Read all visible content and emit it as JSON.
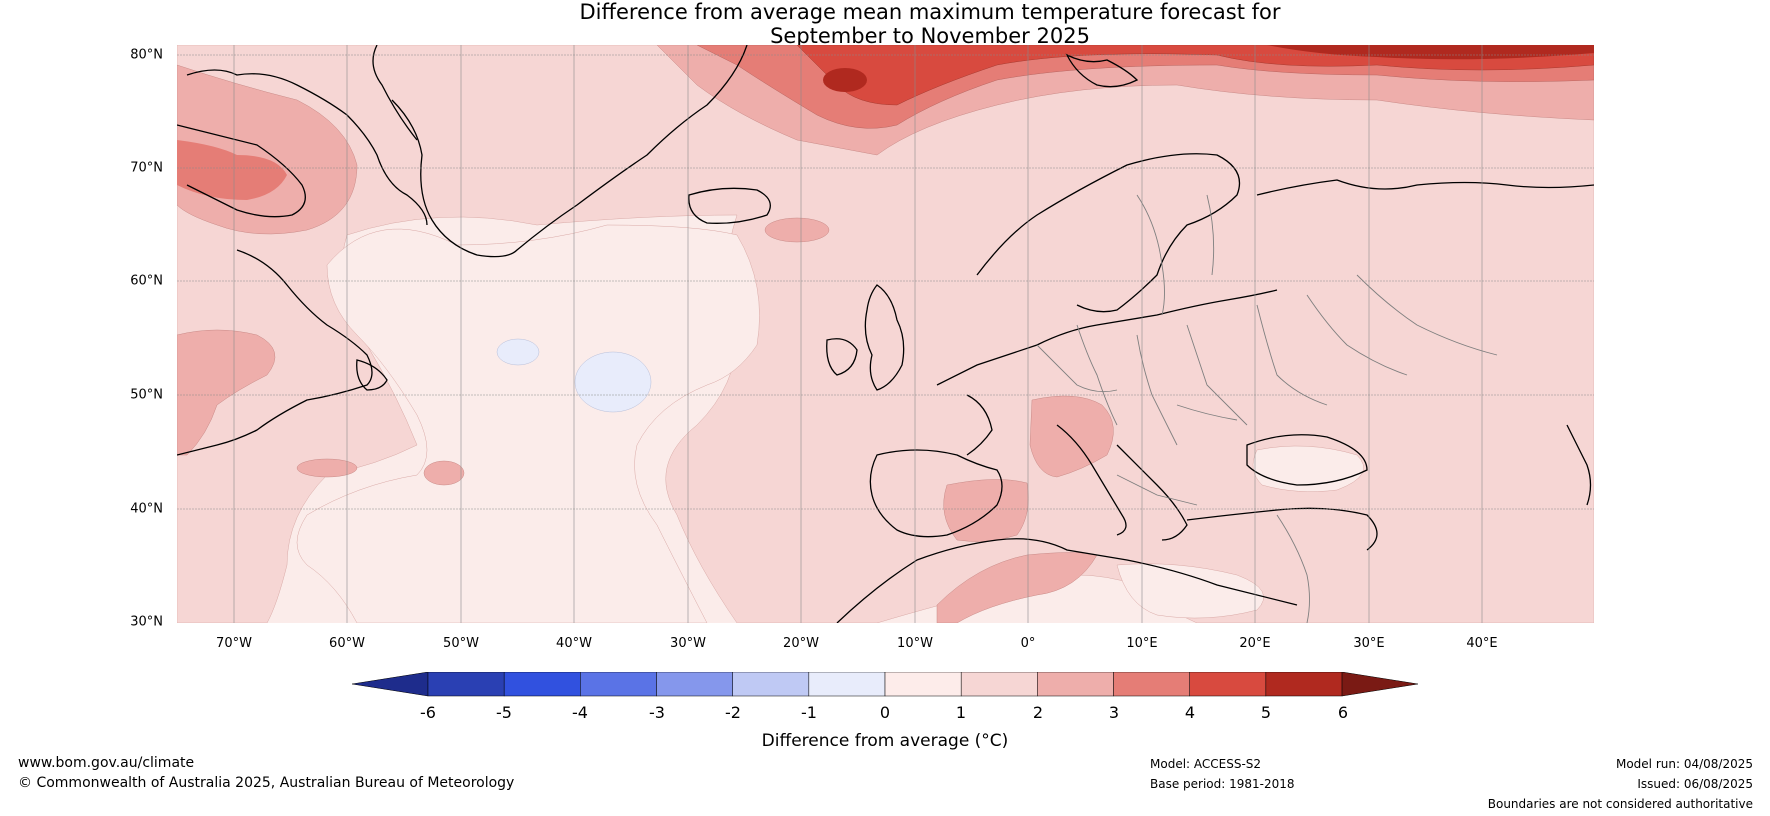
{
  "title": {
    "line1": "Difference from average mean maximum temperature forecast for",
    "line2": "September to November 2025"
  },
  "map": {
    "latitude_labels": [
      "80°N",
      "70°N",
      "60°N",
      "50°N",
      "40°N",
      "30°N"
    ],
    "longitude_labels": [
      "70°W",
      "60°W",
      "50°W",
      "40°W",
      "30°W",
      "20°W",
      "10°W",
      "0°",
      "10°E",
      "20°E",
      "30°E",
      "40°E"
    ],
    "colors": {
      "ocean_background": "#fbecea",
      "land_background": "#f6d6d4"
    }
  },
  "colorbar": {
    "ticks": [
      "-6",
      "-5",
      "-4",
      "-3",
      "-2",
      "-1",
      "0",
      "1",
      "2",
      "3",
      "4",
      "5",
      "6"
    ],
    "colors": [
      "#1e2c8c",
      "#2a40b3",
      "#3151df",
      "#5a73e6",
      "#8597ec",
      "#bfc9f4",
      "#e8ecfb",
      "#fdecea",
      "#f6d6d4",
      "#eeaeab",
      "#e57d76",
      "#d84a3f",
      "#b0291f",
      "#7a1a14"
    ],
    "label": "Difference from average (°C)"
  },
  "footer": {
    "website": "www.bom.gov.au/climate",
    "copyright": "© Commonwealth of Australia 2025, Australian Bureau of Meteorology",
    "model": "Model: ACCESS-S2",
    "base_period": "Base period: 1981-2018",
    "model_run": "Model run: 04/08/2025",
    "issued": "Issued: 06/08/2025",
    "disclaimer": "Boundaries are not considered authoritative"
  }
}
